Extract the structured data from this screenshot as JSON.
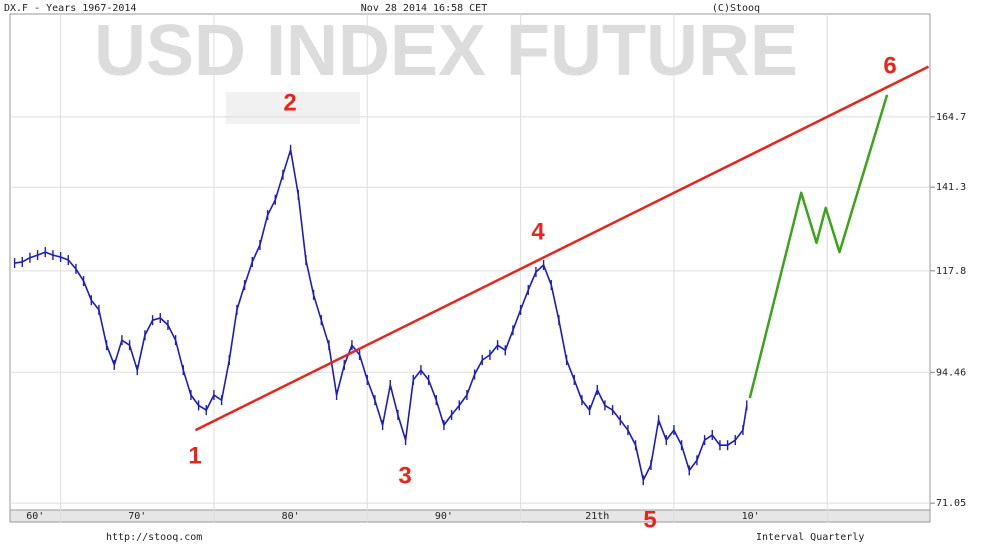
{
  "chart_data": {
    "type": "line",
    "header_left": "DX.F - Years 1967-2014",
    "header_center": "Nov 28 2014 16:58 CET",
    "header_right": "(C)Stooq",
    "watermark": "USD INDEX FUTURE",
    "footer_left": "http://stooq.com",
    "footer_right": "Interval Quarterly",
    "wave_labels": [
      "1",
      "2",
      "3",
      "4",
      "5",
      "6"
    ],
    "log_scale": true,
    "grid": true,
    "xlim": [
      1966.7,
      2026.7
    ],
    "ylim": [
      70,
      206
    ],
    "yticks": [
      71.05,
      94.46,
      117.8,
      141.3,
      164.7
    ],
    "xticks": [
      {
        "value": 1960,
        "label": "60'"
      },
      {
        "value": 1970,
        "label": "70'"
      },
      {
        "value": 1980,
        "label": "80'"
      },
      {
        "value": 1990,
        "label": "90'"
      },
      {
        "value": 2000,
        "label": "21th"
      },
      {
        "value": 2010,
        "label": "10'"
      }
    ],
    "x_gridlines": [
      1970,
      1980,
      1990,
      2000,
      2010,
      2020
    ],
    "x": [
      1967,
      1967.5,
      1968,
      1968.5,
      1969,
      1969.5,
      1970,
      1970.5,
      1971,
      1971.5,
      1972,
      1972.5,
      1973,
      1973.5,
      1974,
      1974.5,
      1975,
      1975.5,
      1976,
      1976.5,
      1977,
      1977.5,
      1978,
      1978.5,
      1979,
      1979.5,
      1980,
      1980.5,
      1981,
      1981.5,
      1982,
      1982.5,
      1983,
      1983.5,
      1984,
      1984.5,
      1985,
      1985.5,
      1986,
      1986.5,
      1987,
      1987.5,
      1988,
      1988.5,
      1989,
      1989.5,
      1990,
      1990.5,
      1991,
      1991.5,
      1992,
      1992.5,
      1993,
      1993.5,
      1994,
      1994.5,
      1995,
      1995.5,
      1996,
      1996.5,
      1997,
      1997.5,
      1998,
      1998.5,
      1999,
      1999.5,
      2000,
      2000.5,
      2001,
      2001.5,
      2002,
      2002.5,
      2003,
      2003.5,
      2004,
      2004.5,
      2005,
      2005.5,
      2006,
      2006.5,
      2007,
      2007.5,
      2008,
      2008.5,
      2009,
      2009.5,
      2010,
      2010.5,
      2011,
      2011.5,
      2012,
      2012.5,
      2013,
      2013.5,
      2014,
      2014.5,
      2014.75
    ],
    "series": [
      {
        "color": "#1c1cc4",
        "values": [
          119.8,
          120.1,
          121.2,
          121.9,
          122.7,
          121.9,
          121.4,
          120.6,
          118.3,
          115.2,
          110.5,
          108.2,
          100.2,
          96.0,
          101.3,
          100.2,
          94.9,
          102.4,
          105.8,
          106.3,
          104.7,
          101.3,
          94.9,
          89.9,
          87.9,
          87.0,
          89.9,
          88.9,
          97.0,
          108.2,
          114.2,
          120.1,
          124.6,
          133.0,
          137.5,
          145.2,
          153.3,
          139.0,
          120.6,
          111.8,
          105.8,
          100.2,
          89.9,
          96.0,
          100.2,
          98.1,
          92.9,
          88.9,
          84.2,
          91.9,
          86.1,
          81.5,
          92.9,
          94.9,
          92.9,
          88.9,
          84.2,
          86.1,
          87.9,
          89.9,
          94.0,
          97.0,
          98.1,
          100.2,
          99.1,
          103.5,
          108.2,
          113.0,
          117.5,
          119.3,
          114.2,
          105.8,
          97.0,
          92.9,
          88.9,
          87.0,
          90.9,
          87.9,
          87.0,
          85.1,
          83.3,
          80.6,
          74.7,
          77.2,
          85.1,
          81.5,
          83.3,
          80.6,
          76.3,
          78.0,
          81.5,
          82.4,
          80.6,
          80.6,
          81.5,
          83.3,
          87.9
        ]
      }
    ],
    "trend_line": {
      "color": "#e8251d",
      "x": [
        1978.8,
        2026.6
      ],
      "values": [
        83.3,
        183.7
      ]
    },
    "projection": {
      "color": "#3aa517",
      "x": [
        2014.95,
        2018.3,
        2019.3,
        2019.9,
        2020.8,
        2023.9
      ],
      "values": [
        89.3,
        139.6,
        125.2,
        135.1,
        122.7,
        172.8
      ]
    }
  }
}
